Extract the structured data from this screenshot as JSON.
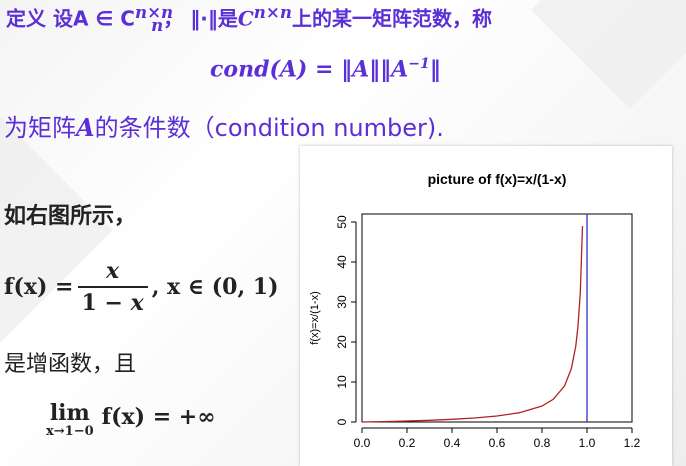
{
  "definition": {
    "lead": "定义  设A ∈ C",
    "lead_sup": "n×n",
    "lead_sub": "n",
    "middle": "，  ‖·‖是",
    "c_base": "C",
    "c_sup": "n×n",
    "tail": "上的某一矩阵范数，称"
  },
  "cond_formula": {
    "left": "cond(A) = ‖A‖‖A",
    "sup": "−1",
    "right": "‖"
  },
  "condition_number": {
    "prefix": "为矩阵",
    "var": "A",
    "suffix": "的条件数（condition number)."
  },
  "shown_text": "如右图所示，",
  "fx_formula": {
    "lhs": "f(x) =",
    "numerator": "x",
    "denominator_prefix": "1 − ",
    "denominator_var": "x",
    "domain": ", x ∈ (0, 1)"
  },
  "increasing_text": "是增函数，且",
  "limit": {
    "lim": "lim",
    "sub": "x→1−0",
    "rest": "f(x) = +∞"
  },
  "chart_data": {
    "type": "line",
    "title": "picture of f(x)=x/(1-x)",
    "xlabel": "",
    "ylabel": "f(x)=x/(1-x)",
    "xlim": [
      0,
      1.2
    ],
    "ylim": [
      0,
      52
    ],
    "x_ticks": [
      0.0,
      0.2,
      0.4,
      0.6,
      0.8,
      1.0,
      1.2
    ],
    "x_tick_labels": [
      "0.0",
      "0.2",
      "0.4",
      "0.6",
      "0.8",
      "1.0",
      "1.2"
    ],
    "y_ticks": [
      0,
      10,
      20,
      30,
      40,
      50
    ],
    "y_tick_labels": [
      "0",
      "10",
      "20",
      "30",
      "40",
      "50"
    ],
    "series": [
      {
        "color": "#b22222",
        "x": [
          0,
          0.1,
          0.2,
          0.3,
          0.4,
          0.5,
          0.6,
          0.7,
          0.8,
          0.85,
          0.9,
          0.93,
          0.95,
          0.96,
          0.97,
          0.98
        ],
        "y": [
          0,
          0.11,
          0.25,
          0.43,
          0.67,
          1.0,
          1.5,
          2.33,
          4.0,
          5.67,
          9.0,
          13.29,
          19.0,
          24.0,
          32.33,
          49.0
        ]
      }
    ],
    "vline": {
      "x": 1.0,
      "y_from": 0,
      "y_to": 52,
      "color": "#3333cc"
    },
    "grid": false,
    "colors": {
      "curve": "#b22222",
      "asymptote": "#3333cc"
    }
  },
  "colors": {
    "accent": "#5b2fd6",
    "text": "#222222"
  }
}
